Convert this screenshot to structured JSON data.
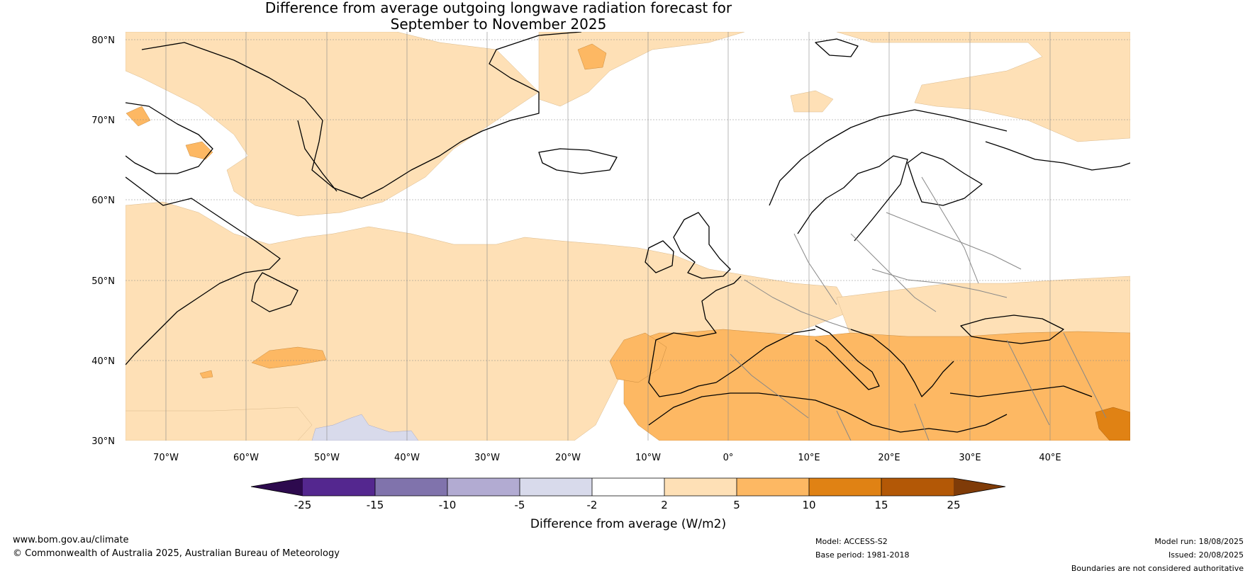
{
  "title": {
    "line1": "Difference from average outgoing longwave radiation forecast for",
    "line2": "September to November 2025"
  },
  "map": {
    "lat_labels": [
      "80°N",
      "70°N",
      "60°N",
      "50°N",
      "40°N",
      "30°N"
    ],
    "lon_labels": [
      "70°W",
      "60°W",
      "50°W",
      "40°W",
      "30°W",
      "20°W",
      "10°W",
      "0°",
      "10°E",
      "20°E",
      "30°E",
      "40°E"
    ],
    "extent": {
      "lon_min": -75,
      "lon_max": 50,
      "lat_min": 30,
      "lat_max": 81
    }
  },
  "colorbar": {
    "title": "Difference from average (W/m2)",
    "ticks": [
      "-25",
      "-15",
      "-10",
      "-5",
      "-2",
      "2",
      "5",
      "10",
      "15",
      "25"
    ],
    "colors": {
      "extend_low": "#2d0a4e",
      "c1": "#54278f",
      "c2": "#8073ac",
      "c3": "#b2abd2",
      "c4": "#d8daeb",
      "c5": "#ffffff",
      "c6": "#fee0b6",
      "c7": "#fdb863",
      "c8": "#e08214",
      "c9": "#b35806",
      "extend_high": "#7f3b08"
    }
  },
  "footer": {
    "website": "www.bom.gov.au/climate",
    "copyright": "© Commonwealth of Australia 2025, Australian Bureau of Meteorology",
    "model": "Model: ACCESS-S2",
    "base_period": "Base period: 1981-2018",
    "model_run": "Model run: 18/08/2025",
    "issued": "Issued: 20/08/2025",
    "boundaries": "Boundaries are not considered authoritative"
  }
}
